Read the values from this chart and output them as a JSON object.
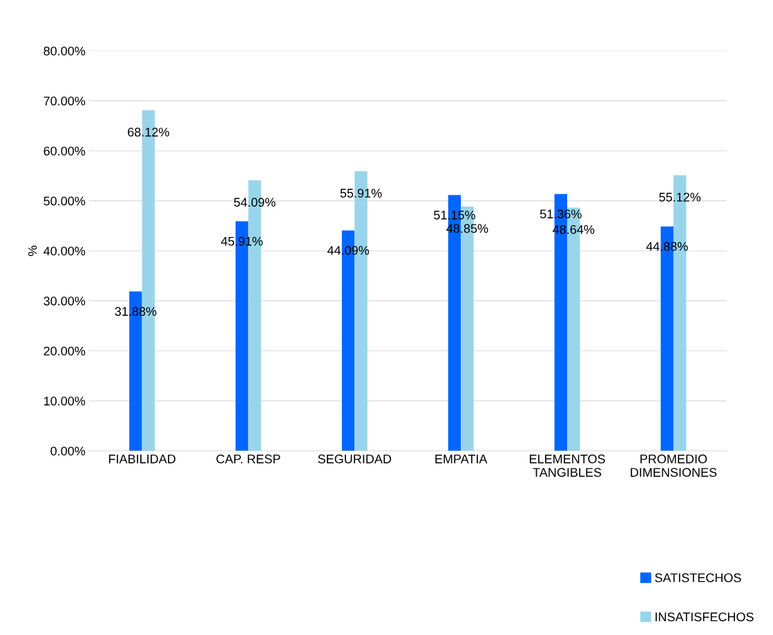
{
  "chart_data": {
    "type": "bar",
    "categories": [
      "FIABILIDAD",
      "CAP. RESP",
      "SEGURIDAD",
      "EMPATIA",
      "ELEMENTOS\nTANGIBLES",
      "PROMEDIO\nDIMENSIONES"
    ],
    "ylabel": "%",
    "series": [
      {
        "name": "SATISTECHOS",
        "color": "#0066ff",
        "values": [
          31.88,
          45.91,
          44.09,
          51.15,
          51.36,
          44.88
        ],
        "value_labels": [
          "31.88%",
          "45.91%",
          "44.09%",
          "51.15%",
          "51.36%",
          "44.88%"
        ]
      },
      {
        "name": "INSATISFECHOS",
        "color": "#99d5ea",
        "values": [
          68.12,
          54.09,
          55.91,
          48.85,
          48.64,
          55.12
        ],
        "value_labels": [
          "68.12%",
          "54.09%",
          "55.91%",
          "48.85%",
          "48.64%",
          "55.12%"
        ]
      }
    ],
    "ylim": [
      0,
      80
    ],
    "yticks": [
      {
        "value": 0,
        "label": "0.00%"
      },
      {
        "value": 10,
        "label": "10.00%"
      },
      {
        "value": 20,
        "label": "20.00%"
      },
      {
        "value": 30,
        "label": "30.00%"
      },
      {
        "value": 40,
        "label": "40.00%"
      },
      {
        "value": 50,
        "label": "50.00%"
      },
      {
        "value": 60,
        "label": "60.00%"
      },
      {
        "value": 70,
        "label": "70.00%"
      },
      {
        "value": 80,
        "label": "80.00%"
      }
    ],
    "grid": "y",
    "legend": "bottom right"
  }
}
